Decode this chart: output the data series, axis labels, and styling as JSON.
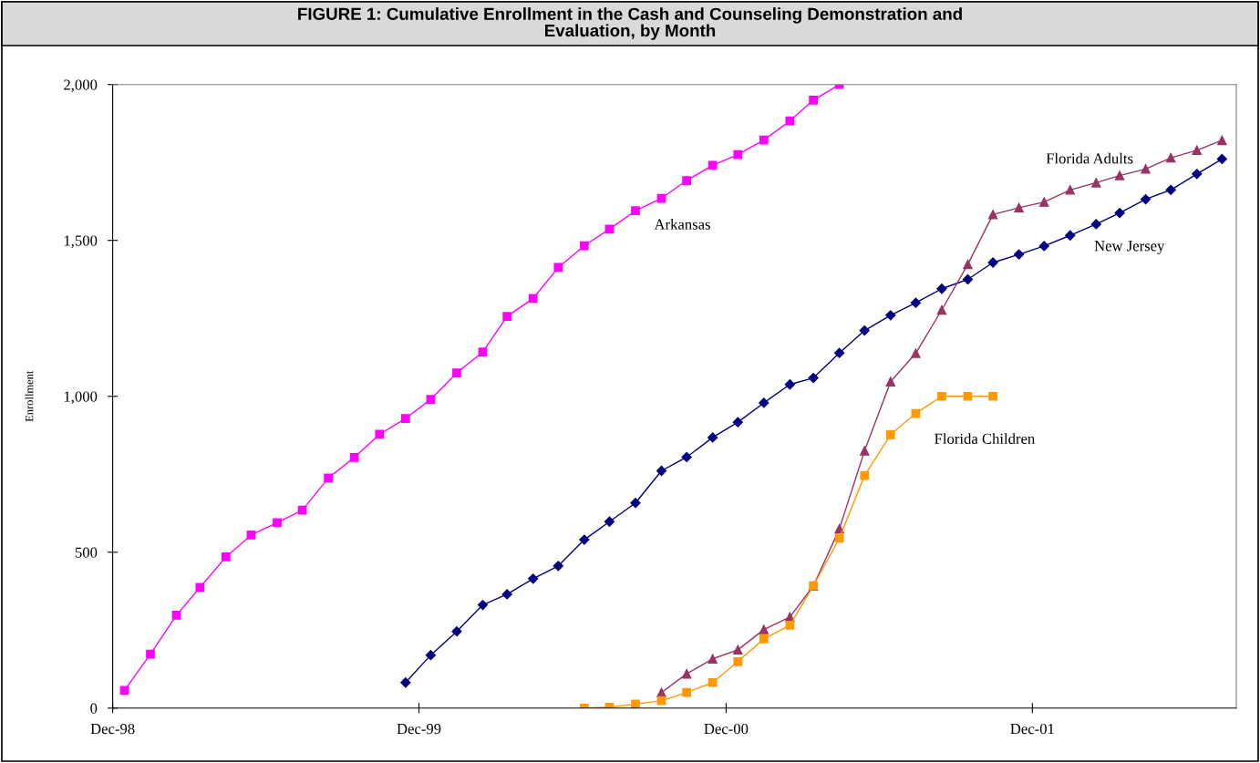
{
  "chart_data": {
    "type": "line",
    "title": "FIGURE 1: Cumulative Enrollment in the Cash and Counseling Demonstration and\nEvaluation, by Month",
    "ylabel": "Enrollment",
    "xlim": [
      "1998-12-01",
      "2002-08-01"
    ],
    "xticks": [
      {
        "value": "1998-12-01",
        "label": "Dec-98"
      },
      {
        "value": "1999-12-01",
        "label": "Dec-99"
      },
      {
        "value": "2000-12-01",
        "label": "Dec-00"
      },
      {
        "value": "2001-12-01",
        "label": "Dec-01"
      }
    ],
    "ylim": [
      0,
      2000
    ],
    "yticks": [
      0,
      500,
      {
        "value": 1000,
        "label": "1,000"
      },
      {
        "value": 1500,
        "label": "1,500"
      },
      {
        "value": 2000,
        "label": "2,000"
      }
    ],
    "grid": false,
    "legend": false,
    "line_style": "solid",
    "series": [
      {
        "name": "Arkansas",
        "color": "#ff00ff",
        "marker": "square",
        "x": [
          "1998-12-15",
          "1999-01-15",
          "1999-02-15",
          "1999-03-15",
          "1999-04-15",
          "1999-05-15",
          "1999-06-15",
          "1999-07-15",
          "1999-08-15",
          "1999-09-15",
          "1999-10-15",
          "1999-11-15",
          "1999-12-15",
          "2000-01-15",
          "2000-02-15",
          "2000-03-15",
          "2000-04-15",
          "2000-05-15",
          "2000-06-15",
          "2000-07-15",
          "2000-08-15",
          "2000-09-15",
          "2000-10-15",
          "2000-11-15",
          "2000-12-15",
          "2001-01-15",
          "2001-02-15",
          "2001-03-15",
          "2001-04-15"
        ],
        "values": [
          57,
          173,
          298,
          387,
          485,
          555,
          595,
          635,
          738,
          804,
          878,
          929,
          990,
          1075,
          1142,
          1256,
          1314,
          1413,
          1483,
          1536,
          1595,
          1635,
          1692,
          1741,
          1775,
          1822,
          1883,
          1950,
          2000
        ]
      },
      {
        "name": "New Jersey",
        "color": "#000080",
        "marker": "diamond",
        "x": [
          "1999-11-15",
          "1999-12-15",
          "2000-01-15",
          "2000-02-15",
          "2000-03-15",
          "2000-04-15",
          "2000-05-15",
          "2000-06-15",
          "2000-07-15",
          "2000-08-15",
          "2000-09-15",
          "2000-10-15",
          "2000-11-15",
          "2000-12-15",
          "2001-01-15",
          "2001-02-15",
          "2001-03-15",
          "2001-04-15",
          "2001-05-15",
          "2001-06-15",
          "2001-07-15",
          "2001-08-15",
          "2001-09-15",
          "2001-10-15",
          "2001-11-15",
          "2001-12-15",
          "2002-01-15",
          "2002-02-15",
          "2002-03-15",
          "2002-04-15",
          "2002-05-15",
          "2002-06-15",
          "2002-07-15"
        ],
        "values": [
          82,
          170,
          246,
          331,
          365,
          415,
          456,
          540,
          598,
          658,
          761,
          805,
          868,
          917,
          979,
          1038,
          1059,
          1139,
          1211,
          1260,
          1300,
          1345,
          1375,
          1429,
          1455,
          1482,
          1516,
          1552,
          1588,
          1632,
          1662,
          1713,
          1761
        ]
      },
      {
        "name": "Florida Adults",
        "color": "#993366",
        "marker": "triangle",
        "x": [
          "2000-09-15",
          "2000-10-15",
          "2000-11-15",
          "2000-12-15",
          "2001-01-15",
          "2001-02-15",
          "2001-03-15",
          "2001-04-15",
          "2001-05-15",
          "2001-06-15",
          "2001-07-15",
          "2001-08-15",
          "2001-09-15",
          "2001-10-15",
          "2001-11-15",
          "2001-12-15",
          "2002-01-15",
          "2002-02-15",
          "2002-03-15",
          "2002-04-15",
          "2002-05-15",
          "2002-06-15",
          "2002-07-15"
        ],
        "values": [
          50,
          110,
          158,
          187,
          252,
          292,
          392,
          575,
          825,
          1047,
          1138,
          1277,
          1423,
          1583,
          1605,
          1623,
          1662,
          1685,
          1708,
          1729,
          1765,
          1789,
          1821
        ]
      },
      {
        "name": "Florida Children",
        "color": "#ff9900",
        "marker": "square",
        "x": [
          "2000-06-15",
          "2000-07-15",
          "2000-08-15",
          "2000-09-15",
          "2000-10-15",
          "2000-11-15",
          "2000-12-15",
          "2001-01-15",
          "2001-02-15",
          "2001-03-15",
          "2001-04-15",
          "2001-05-15",
          "2001-06-15",
          "2001-07-15",
          "2001-08-15",
          "2001-09-15",
          "2001-10-15"
        ],
        "values": [
          0,
          3,
          13,
          24,
          50,
          82,
          149,
          222,
          266,
          392,
          545,
          746,
          877,
          945,
          1000,
          1000,
          1000
        ]
      }
    ]
  }
}
